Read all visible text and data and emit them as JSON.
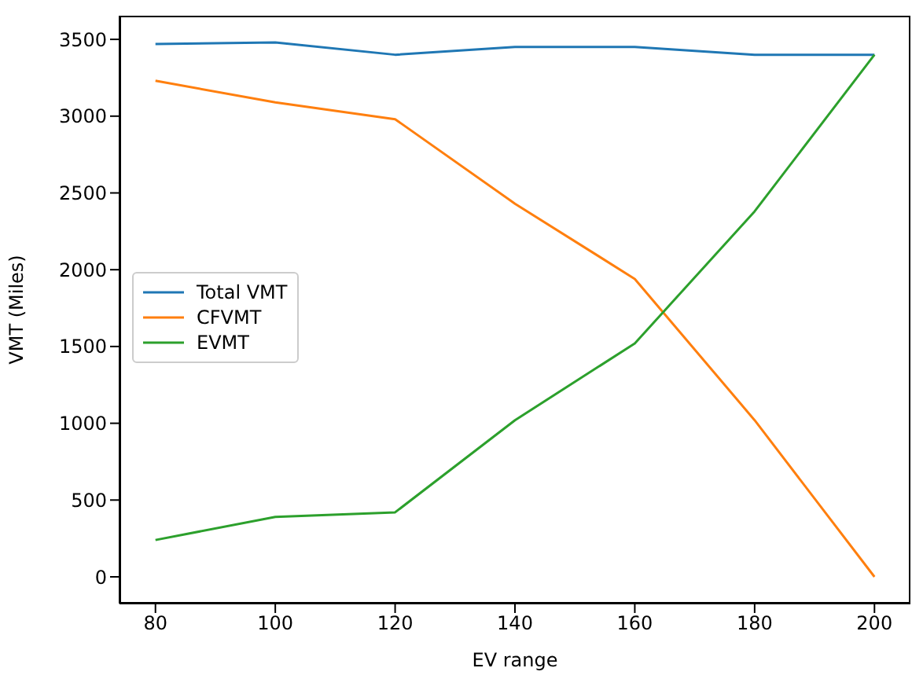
{
  "chart_data": {
    "type": "line",
    "xlabel": "EV range",
    "ylabel": "VMT (Miles)",
    "x": [
      80,
      100,
      120,
      140,
      160,
      180,
      200
    ],
    "series": [
      {
        "name": "Total VMT",
        "color": "#1f77b4",
        "values": [
          3470,
          3480,
          3400,
          3450,
          3450,
          3400,
          3400
        ]
      },
      {
        "name": "CFVMT",
        "color": "#ff7f0e",
        "values": [
          3230,
          3090,
          2980,
          2430,
          1940,
          1020,
          0
        ]
      },
      {
        "name": "EVMT",
        "color": "#2ca02c",
        "values": [
          240,
          390,
          420,
          1020,
          1520,
          2380,
          3400
        ]
      }
    ],
    "xlim": [
      74,
      206
    ],
    "xticks": [
      80,
      100,
      120,
      140,
      160,
      180,
      200
    ],
    "ylim": [
      -174,
      3654
    ],
    "yticks": [
      0,
      500,
      1000,
      1500,
      2000,
      2500,
      3000,
      3500
    ],
    "legend": "center left",
    "marker": "none",
    "line_style": "solid",
    "grid": false
  }
}
